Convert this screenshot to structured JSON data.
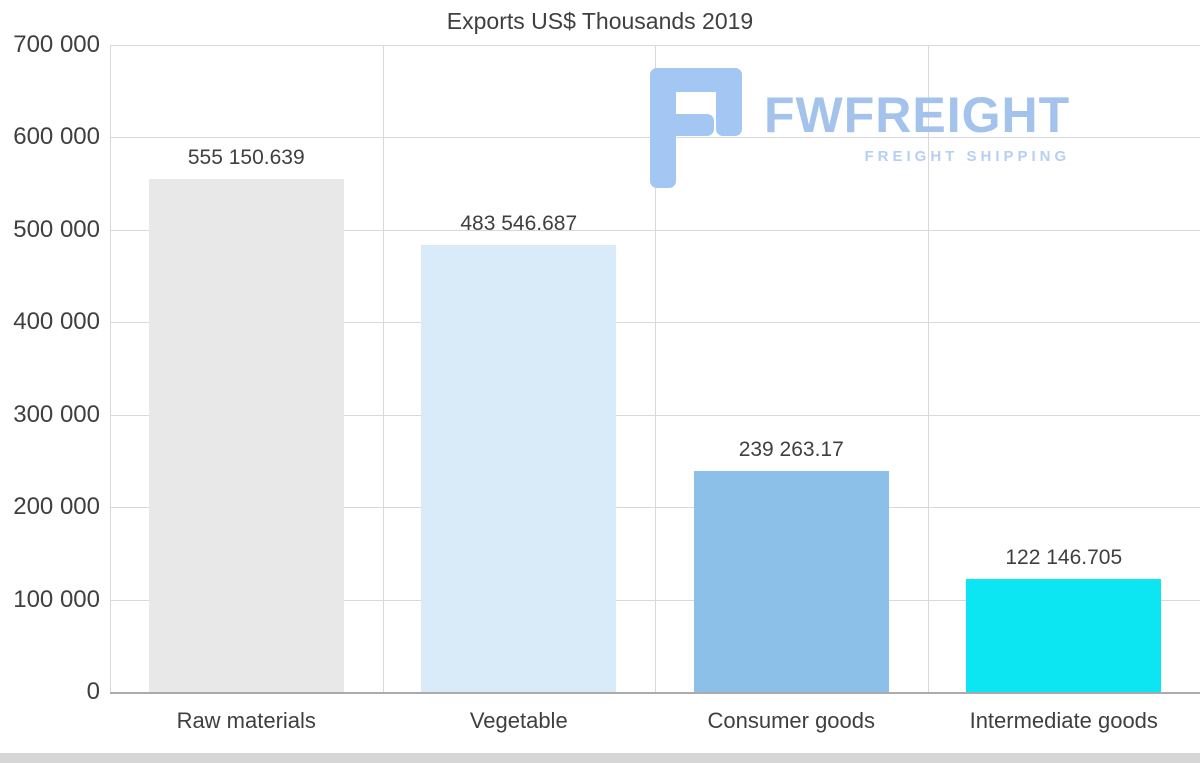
{
  "page": {
    "background": "#ffffff",
    "text_color": "#3f3f3f",
    "gridline_color": "#d9d9d9"
  },
  "chart_data": {
    "type": "bar",
    "title": "Exports US$ Thousands 2019",
    "categories": [
      "Raw materials",
      "Vegetable",
      "Consumer goods",
      "Intermediate goods"
    ],
    "values": [
      555150.639,
      483546.687,
      239263.17,
      122146.705
    ],
    "value_labels": [
      "555 150.639",
      "483 546.687",
      "239 263.17",
      "122 146.705"
    ],
    "bar_colors": [
      "#e8e8e8",
      "#d9eaf8",
      "#8cc0e8",
      "#0ce6f2"
    ],
    "xlabel": "",
    "ylabel": "",
    "ylim": [
      0,
      700000
    ],
    "ytick_values": [
      0,
      100000,
      200000,
      300000,
      400000,
      500000,
      600000,
      700000
    ],
    "ytick_labels": [
      "0",
      "100 000",
      "200 000",
      "300 000",
      "400 000",
      "500 000",
      "600 000",
      "700 000"
    ],
    "grid": "horizontal gridlines at each y tick, vertical separators between categories",
    "legend": "none"
  },
  "watermark": {
    "brand": "FWFREIGHT",
    "tagline": "FREIGHT SHIPPING",
    "brand_color": "#a3c2ec",
    "tagline_color": "#b6cff2",
    "icon_color": "#a3c6f2",
    "icon": "fwfreight-f-logo"
  }
}
